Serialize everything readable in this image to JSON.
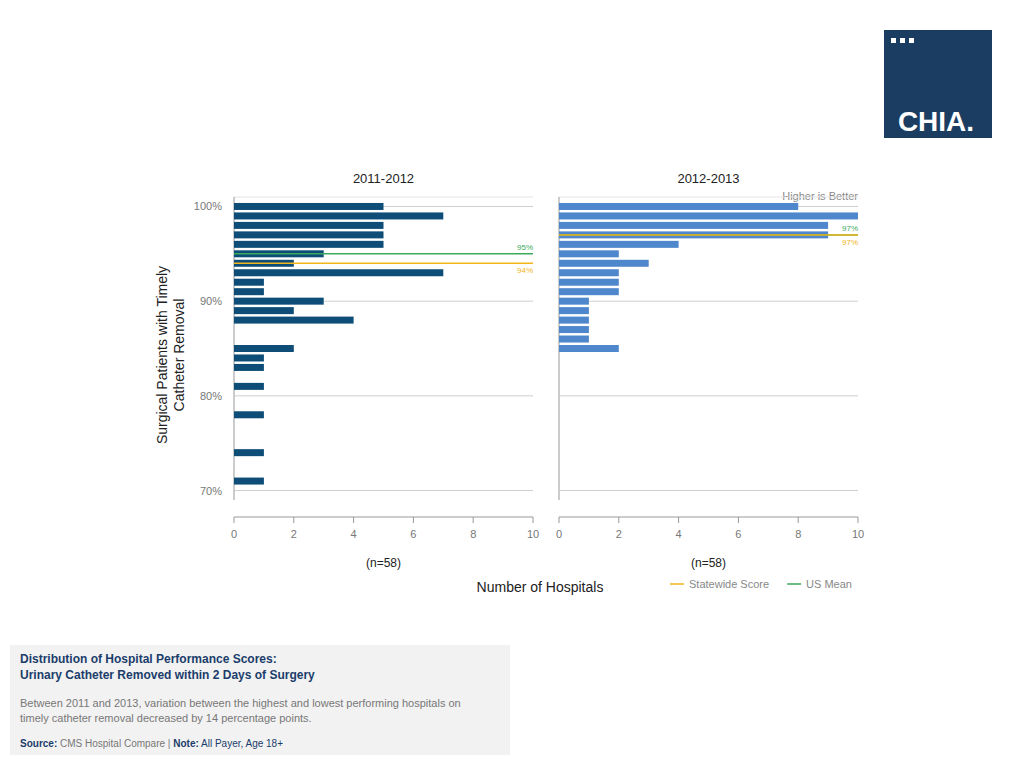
{
  "chart_data": [
    {
      "type": "bar",
      "orientation": "horizontal",
      "title": "2011-2012",
      "n_label": "(n=58)",
      "y": [
        100,
        99,
        98,
        97,
        96,
        95,
        94,
        93,
        92,
        91,
        90,
        89,
        88,
        85,
        84,
        83,
        81,
        78,
        74,
        71
      ],
      "values": [
        5,
        7,
        5,
        5,
        5,
        3,
        2,
        7,
        1,
        1,
        3,
        2,
        4,
        2,
        1,
        1,
        1,
        1,
        1,
        1
      ],
      "color": "#0d4d78",
      "xlim": [
        0,
        10
      ],
      "xticks": [
        0,
        2,
        4,
        6,
        8,
        10
      ],
      "ylim": [
        69,
        101
      ],
      "yticks": [
        {
          "value": 70,
          "label": "70%"
        },
        {
          "value": 80,
          "label": "80%"
        },
        {
          "value": 90,
          "label": "90%"
        },
        {
          "value": 100,
          "label": "100%"
        }
      ],
      "grid": true,
      "reference_lines": [
        {
          "name": "US Mean",
          "value": 95,
          "label": "95%"
        },
        {
          "name": "Statewide Score",
          "value": 94,
          "label": "94%"
        }
      ]
    },
    {
      "type": "bar",
      "orientation": "horizontal",
      "title": "2012-2013",
      "n_label": "(n=58)",
      "annotation": "Higher is Better",
      "y": [
        100,
        99,
        98,
        97,
        96,
        95,
        94,
        93,
        92,
        91,
        90,
        89,
        88,
        87,
        86,
        85
      ],
      "values": [
        8,
        10,
        9,
        9,
        4,
        2,
        3,
        2,
        2,
        2,
        1,
        1,
        1,
        1,
        1,
        2
      ],
      "color": "#4f87cc",
      "xlim": [
        0,
        10
      ],
      "xticks": [
        0,
        2,
        4,
        6,
        8,
        10
      ],
      "ylim": [
        69,
        101
      ],
      "yticks": [
        70,
        80,
        90,
        100
      ],
      "grid": true,
      "tick_labels": "x",
      "reference_lines": [
        {
          "name": "US Mean",
          "value": 97,
          "label": "97%"
        },
        {
          "name": "Statewide Score",
          "value": 97,
          "label": "97%"
        }
      ]
    }
  ],
  "page": {
    "logo": "CHIA.",
    "x_label": "Number of Hospitals",
    "y_label": [
      "Surgical Patients with Timely",
      "Catheter Removal"
    ],
    "legend": [
      {
        "name": "Statewide Score",
        "color": "#f2b51c"
      },
      {
        "name": "US Mean",
        "color": "#3aaa5c"
      }
    ],
    "caption_title": [
      "Distribution of Hospital Performance Scores:",
      "Urinary Catheter Removed within 2 Days of Surgery"
    ],
    "caption_text": [
      "Between 2011 and 2013, variation between the highest and lowest performing hospitals on",
      "timely catheter removal decreased by 14 percentage points."
    ],
    "source_label": "Source:",
    "source": "CMS Hospital Compare",
    "separator": "|",
    "note_label": "Note:",
    "note": "All Payer, Age 18+"
  }
}
